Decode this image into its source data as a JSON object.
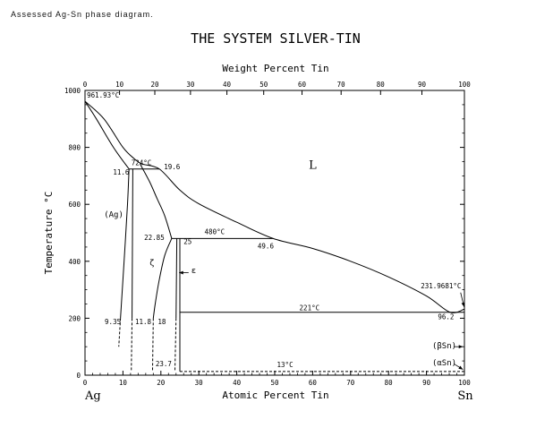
{
  "caption": "Assessed Ag-Sn phase diagram.",
  "chart_data": {
    "type": "phase-diagram",
    "title": "THE SYSTEM SILVER-TIN",
    "top_axis_label": "Weight Percent Tin",
    "bottom_axis_label": "Atomic Percent Tin",
    "y_axis_label": "Temperature °C",
    "left_component": "Ag",
    "right_component": "Sn",
    "x_range": [
      0,
      100
    ],
    "y_range": [
      0,
      1000
    ],
    "x_ticks": [
      "0",
      "10",
      "20",
      "30",
      "40",
      "50",
      "60",
      "70",
      "80",
      "90",
      "100"
    ],
    "y_ticks": [
      "0",
      "200",
      "400",
      "600",
      "800",
      "1000"
    ],
    "top_ticks": [
      "0",
      "10",
      "20",
      "30",
      "40",
      "50",
      "60",
      "70",
      "80",
      "90",
      "100"
    ],
    "top_tick_at_pct": [
      0,
      9.1,
      18.4,
      27.8,
      37.4,
      47.1,
      57.2,
      67.5,
      77.9,
      88.8,
      100
    ],
    "phase_labels": [
      {
        "text": "L",
        "x": 59,
        "y": 725,
        "cls": "big"
      },
      {
        "text": "(Ag)",
        "x": 5,
        "y": 555,
        "cls": "phase"
      },
      {
        "text": "ζ",
        "x": 17,
        "y": 385,
        "cls": "phase"
      },
      {
        "text": "ε",
        "x": 28,
        "y": 358,
        "cls": "phase"
      },
      {
        "text": "(βSn)",
        "x": 91.5,
        "y": 95,
        "cls": "phase"
      },
      {
        "text": "(αSn)",
        "x": 91.5,
        "y": 35,
        "cls": "phase"
      }
    ],
    "annotations": [
      {
        "text": "961.93°C",
        "x": 0.5,
        "y": 975
      },
      {
        "text": "724°C",
        "x": 12.2,
        "y": 737
      },
      {
        "text": "19.6",
        "x": 20.8,
        "y": 723
      },
      {
        "text": "11.6",
        "x": 7.4,
        "y": 705
      },
      {
        "text": "22.85",
        "x": 15.6,
        "y": 475
      },
      {
        "text": "480°C",
        "x": 31.5,
        "y": 495
      },
      {
        "text": "25",
        "x": 26,
        "y": 460
      },
      {
        "text": "49.6",
        "x": 45.5,
        "y": 445
      },
      {
        "text": "231.9681°C",
        "x": 88.5,
        "y": 305
      },
      {
        "text": "221°C",
        "x": 56.5,
        "y": 228
      },
      {
        "text": "96.2",
        "x": 93,
        "y": 196
      },
      {
        "text": "9.35",
        "x": 5.2,
        "y": 180
      },
      {
        "text": "11.8",
        "x": 13.2,
        "y": 180
      },
      {
        "text": "18",
        "x": 19.2,
        "y": 180
      },
      {
        "text": "23.7",
        "x": 18.6,
        "y": 32
      },
      {
        "text": "13°C",
        "x": 50.6,
        "y": 28
      }
    ],
    "liquidus": [
      [
        0,
        961.93
      ],
      [
        5,
        900
      ],
      [
        10,
        800
      ],
      [
        13,
        760
      ],
      [
        15,
        742
      ],
      [
        19.6,
        724
      ],
      [
        25,
        650
      ],
      [
        30,
        602
      ],
      [
        40,
        537
      ],
      [
        49.6,
        480
      ],
      [
        60,
        445
      ],
      [
        70,
        400
      ],
      [
        80,
        345
      ],
      [
        90,
        278
      ],
      [
        96.2,
        221
      ],
      [
        100,
        231.97
      ]
    ],
    "solidus_ag": [
      [
        0,
        961.93
      ],
      [
        3,
        900
      ],
      [
        7.5,
        800
      ],
      [
        11.6,
        724
      ]
    ],
    "eutectic_724": [
      [
        11.6,
        724
      ],
      [
        19.6,
        724
      ]
    ],
    "ag_solvus_solid": [
      [
        11.6,
        724
      ],
      [
        11.2,
        600
      ],
      [
        10.3,
        400
      ],
      [
        9.35,
        200
      ]
    ],
    "ag_solvus_dashed": [
      [
        9.35,
        200
      ],
      [
        8.9,
        100
      ]
    ],
    "zeta_right_solid": [
      [
        12.6,
        724
      ],
      [
        12.4,
        200
      ]
    ],
    "zeta_right_dashed": [
      [
        12.4,
        200
      ],
      [
        12.2,
        13
      ]
    ],
    "zeta_boundary_upper": [
      [
        14.5,
        742
      ],
      [
        17,
        680
      ],
      [
        19,
        620
      ],
      [
        21,
        560
      ],
      [
        22.85,
        480
      ]
    ],
    "zeta_boundary_lower": [
      [
        22.85,
        480
      ],
      [
        21,
        420
      ],
      [
        19.5,
        330
      ],
      [
        18.5,
        250
      ],
      [
        18,
        200
      ]
    ],
    "zeta_lower_dashed": [
      [
        18,
        200
      ],
      [
        17.8,
        13
      ]
    ],
    "peritectic_480": [
      [
        22.85,
        480
      ],
      [
        49.6,
        480
      ]
    ],
    "eps_left_solid": [
      [
        24.2,
        480
      ],
      [
        24,
        200
      ]
    ],
    "eps_left_dashed": [
      [
        24,
        200
      ],
      [
        23.7,
        13
      ]
    ],
    "eps_right_solid": [
      [
        25,
        480
      ],
      [
        25,
        13
      ]
    ],
    "eutectic_221": [
      [
        25,
        221
      ],
      [
        96.2,
        221
      ],
      [
        100,
        221
      ]
    ],
    "line_13": [
      [
        25,
        13
      ],
      [
        100,
        13
      ]
    ],
    "sn_vertical": [
      [
        100,
        232
      ],
      [
        100,
        0
      ]
    ]
  }
}
